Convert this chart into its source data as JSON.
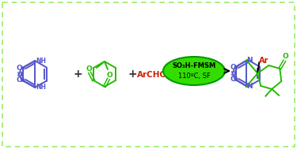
{
  "background_color": "#ffffff",
  "border_color": "#90EE90",
  "blue_color": "#5555CC",
  "green_color": "#22BB00",
  "red_color": "#CC2200",
  "black_color": "#000000",
  "catalyst_line1": "SO₃H-FMSM",
  "catalyst_line2": "110ºC, SF",
  "Ar_label": "Ar",
  "figsize": [
    3.75,
    1.89
  ],
  "dpi": 100
}
